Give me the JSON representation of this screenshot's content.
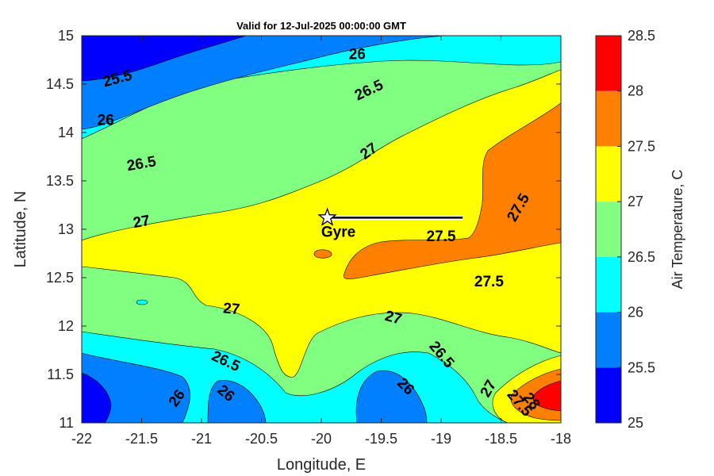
{
  "chart_data": {
    "type": "contour",
    "title": "Valid for 12-Jul-2025 00:00:00 GMT",
    "xlabel": "Longitude, E",
    "ylabel": "Latitude, N",
    "xlim": [
      -22,
      -18
    ],
    "ylim": [
      11,
      15
    ],
    "x_ticks": [
      -22,
      -21.5,
      -21,
      -20.5,
      -20,
      -19.5,
      -19,
      -18.5,
      -18
    ],
    "x_tick_labels": [
      "-22",
      "-21.5",
      "-21",
      "-20.5",
      "-20",
      "-19.5",
      "-19",
      "-18.5",
      "-18"
    ],
    "y_ticks": [
      11,
      11.5,
      12,
      12.5,
      13,
      13.5,
      14,
      14.5,
      15
    ],
    "y_tick_labels": [
      "11",
      "11.5",
      "12",
      "12.5",
      "13",
      "13.5",
      "14",
      "14.5",
      "15"
    ],
    "colorbar": {
      "label": "Air Temperature, C",
      "levels": [
        25,
        25.5,
        26,
        26.5,
        27,
        27.5,
        28,
        28.5
      ],
      "level_labels": [
        "25",
        "25.5",
        "26",
        "26.5",
        "27",
        "27.5",
        "28",
        "28.5"
      ],
      "colors": [
        "#0000ff",
        "#0080ff",
        "#00ffff",
        "#80ff80",
        "#ffff00",
        "#ff8000",
        "#ff0000",
        "#800000"
      ]
    },
    "contour_labels": [
      {
        "text": "25.5",
        "lon": -21.7,
        "lat": 14.55,
        "angle": -15
      },
      {
        "text": "26",
        "lon": -19.7,
        "lat": 14.8,
        "angle": 0
      },
      {
        "text": "26",
        "lon": -21.8,
        "lat": 14.12,
        "angle": 0
      },
      {
        "text": "26.5",
        "lon": -19.6,
        "lat": 14.43,
        "angle": -25
      },
      {
        "text": "26.5",
        "lon": -21.5,
        "lat": 13.67,
        "angle": -10
      },
      {
        "text": "27",
        "lon": -19.6,
        "lat": 13.8,
        "angle": -35
      },
      {
        "text": "27",
        "lon": -21.5,
        "lat": 13.07,
        "angle": -10
      },
      {
        "text": "27.5",
        "lon": -19.0,
        "lat": 12.92,
        "angle": 0
      },
      {
        "text": "27.5",
        "lon": -18.35,
        "lat": 13.22,
        "angle": -60
      },
      {
        "text": "27.5",
        "lon": -18.6,
        "lat": 12.45,
        "angle": 0
      },
      {
        "text": "27",
        "lon": -20.75,
        "lat": 12.17,
        "angle": 5
      },
      {
        "text": "27",
        "lon": -19.4,
        "lat": 12.08,
        "angle": 15
      },
      {
        "text": "26.5",
        "lon": -20.8,
        "lat": 11.63,
        "angle": 25
      },
      {
        "text": "26.5",
        "lon": -19.0,
        "lat": 11.7,
        "angle": 50
      },
      {
        "text": "26",
        "lon": -21.2,
        "lat": 11.25,
        "angle": -55
      },
      {
        "text": "26",
        "lon": -20.8,
        "lat": 11.3,
        "angle": 40
      },
      {
        "text": "26",
        "lon": -19.3,
        "lat": 11.37,
        "angle": 45
      },
      {
        "text": "27",
        "lon": -18.6,
        "lat": 11.35,
        "angle": -60
      },
      {
        "text": "27.5",
        "lon": -18.35,
        "lat": 11.2,
        "angle": 50
      },
      {
        "text": "28",
        "lon": -18.25,
        "lat": 11.22,
        "angle": 50
      }
    ],
    "station": {
      "name": "Gyre",
      "lon": -19.95,
      "lat": 13.12
    },
    "track": {
      "lon": [
        -19.95,
        -18.82
      ],
      "lat": [
        13.12,
        13.12
      ]
    }
  }
}
